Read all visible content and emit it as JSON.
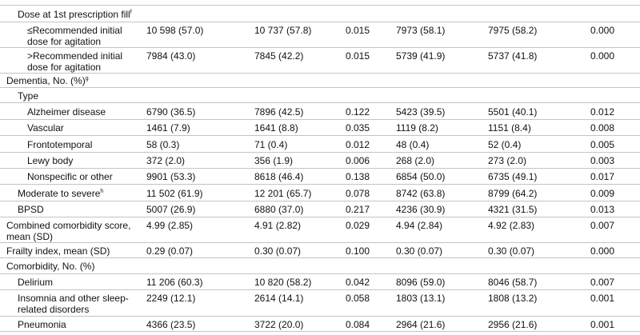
{
  "table": {
    "rows": [
      {
        "label": "Dose at 1st prescription fill",
        "sup": "f"
      },
      {
        "label": "≤Recommended initial dose for agitation",
        "cells": [
          "10 598 (57.0)",
          "10 737 (57.8)",
          "0.015",
          "7973 (58.1)",
          "7975 (58.2)",
          "0.000"
        ]
      },
      {
        "label": ">Recommended initial dose for agitation",
        "cells": [
          "7984 (43.0)",
          "7845 (42.2)",
          "0.015",
          "5739 (41.9)",
          "5737 (41.8)",
          "0.000"
        ]
      },
      {
        "label": "Dementia, No. (%)",
        "sup": "g"
      },
      {
        "label": "Type"
      },
      {
        "label": "Alzheimer disease",
        "cells": [
          "6790 (36.5)",
          "7896 (42.5)",
          "0.122",
          "5423 (39.5)",
          "5501 (40.1)",
          "0.012"
        ]
      },
      {
        "label": "Vascular",
        "cells": [
          "1461 (7.9)",
          "1641 (8.8)",
          "0.035",
          "1119 (8.2)",
          "1151 (8.4)",
          "0.008"
        ]
      },
      {
        "label": "Frontotemporal",
        "cells": [
          "58 (0.3)",
          "71 (0.4)",
          "0.012",
          "48 (0.4)",
          "52 (0.4)",
          "0.005"
        ]
      },
      {
        "label": "Lewy body",
        "cells": [
          "372 (2.0)",
          "356 (1.9)",
          "0.006",
          "268 (2.0)",
          "273 (2.0)",
          "0.003"
        ]
      },
      {
        "label": "Nonspecific or other",
        "cells": [
          "9901 (53.3)",
          "8618 (46.4)",
          "0.138",
          "6854 (50.0)",
          "6735 (49.1)",
          "0.017"
        ]
      },
      {
        "label": "Moderate to severe",
        "sup": "h",
        "cells": [
          "11 502 (61.9)",
          "12 201 (65.7)",
          "0.078",
          "8742 (63.8)",
          "8799 (64.2)",
          "0.009"
        ]
      },
      {
        "label": "BPSD",
        "cells": [
          "5007 (26.9)",
          "6880 (37.0)",
          "0.217",
          "4236 (30.9)",
          "4321 (31.5)",
          "0.013"
        ]
      },
      {
        "label": "Combined comorbidity score, mean (SD)",
        "cells": [
          "4.99 (2.85)",
          "4.91 (2.82)",
          "0.029",
          "4.94 (2.84)",
          "4.92 (2.83)",
          "0.007"
        ]
      },
      {
        "label": "Frailty index, mean (SD)",
        "cells": [
          "0.29 (0.07)",
          "0.30 (0.07)",
          "0.100",
          "0.30 (0.07)",
          "0.30 (0.07)",
          "0.000"
        ]
      },
      {
        "label": "Comorbidity, No. (%)"
      },
      {
        "label": "Delirium",
        "cells": [
          "11 206 (60.3)",
          "10 820 (58.2)",
          "0.042",
          "8096 (59.0)",
          "8046 (58.7)",
          "0.007"
        ]
      },
      {
        "label": "Insomnia and other sleep-related disorders",
        "cells": [
          "2249 (12.1)",
          "2614 (14.1)",
          "0.058",
          "1803 (13.1)",
          "1808 (13.2)",
          "0.001"
        ]
      },
      {
        "label": "Pneumonia",
        "cells": [
          "4366 (23.5)",
          "3722 (20.0)",
          "0.084",
          "2964 (21.6)",
          "2956 (21.6)",
          "0.001"
        ]
      }
    ]
  }
}
